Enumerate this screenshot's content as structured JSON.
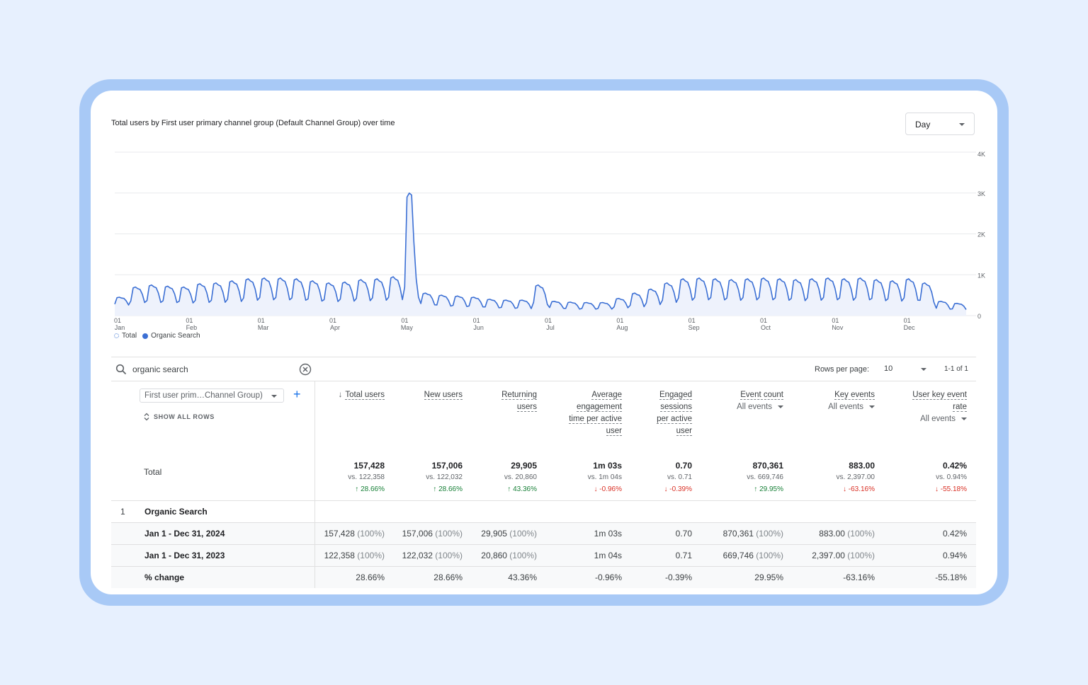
{
  "chart": {
    "title": "Total users by First user primary channel group (Default Channel Group) over time",
    "period": "Day",
    "legend": [
      "Total",
      "Organic Search"
    ],
    "colors": {
      "line": "#3b6fd4",
      "area": "#eef2fc",
      "grid": "#e8eaed"
    }
  },
  "chart_data": {
    "type": "line",
    "title": "Total users by First user primary channel group (Default Channel Group) over time",
    "xlabel": "",
    "ylabel": "",
    "ylim": [
      0,
      4000
    ],
    "y_ticks": [
      "4K",
      "3K",
      "2K",
      "1K",
      "0"
    ],
    "x_ticks": [
      {
        "day": "01",
        "month": "Jan"
      },
      {
        "day": "01",
        "month": "Feb"
      },
      {
        "day": "01",
        "month": "Mar"
      },
      {
        "day": "01",
        "month": "Apr"
      },
      {
        "day": "01",
        "month": "May"
      },
      {
        "day": "01",
        "month": "Jun"
      },
      {
        "day": "01",
        "month": "Jul"
      },
      {
        "day": "01",
        "month": "Aug"
      },
      {
        "day": "01",
        "month": "Sep"
      },
      {
        "day": "01",
        "month": "Oct"
      },
      {
        "day": "01",
        "month": "Nov"
      },
      {
        "day": "01",
        "month": "Dec"
      }
    ],
    "grid": true,
    "series": [
      {
        "name": "Organic Search",
        "x": [
          "Jan 1",
          "Jan 8",
          "Jan 15",
          "Jan 22",
          "Jan 29",
          "Feb 5",
          "Feb 12",
          "Feb 19",
          "Feb 26",
          "Mar 4",
          "Mar 11",
          "Mar 18",
          "Mar 25",
          "Apr 1",
          "Apr 8",
          "Apr 15",
          "Apr 22",
          "Apr 29",
          "May 6",
          "May 13",
          "May 20",
          "May 27",
          "Jun 3",
          "Jun 10",
          "Jun 17",
          "Jun 24",
          "Jul 1",
          "Jul 8",
          "Jul 15",
          "Jul 22",
          "Jul 29",
          "Aug 5",
          "Aug 12",
          "Aug 19",
          "Aug 26",
          "Sep 2",
          "Sep 9",
          "Sep 16",
          "Sep 23",
          "Sep 30",
          "Oct 7",
          "Oct 14",
          "Oct 21",
          "Oct 28",
          "Nov 4",
          "Nov 11",
          "Nov 18",
          "Nov 25",
          "Dec 2",
          "Dec 9",
          "Dec 16",
          "Dec 23",
          "Dec 30"
        ],
        "weekly_peaks": [
          450,
          700,
          750,
          720,
          700,
          780,
          800,
          850,
          900,
          920,
          920,
          900,
          850,
          800,
          820,
          880,
          900,
          950,
          3000,
          550,
          500,
          480,
          450,
          400,
          380,
          380,
          750,
          350,
          330,
          320,
          320,
          420,
          550,
          650,
          800,
          900,
          920,
          900,
          880,
          900,
          920,
          900,
          880,
          900,
          920,
          900,
          920,
          880,
          850,
          900,
          800,
          350,
          300
        ],
        "weekly_troughs": [
          250,
          300,
          300,
          300,
          290,
          300,
          300,
          320,
          350,
          360,
          360,
          350,
          330,
          320,
          330,
          340,
          350,
          360,
          500,
          250,
          220,
          210,
          200,
          180,
          170,
          160,
          250,
          170,
          150,
          150,
          150,
          180,
          200,
          250,
          300,
          350,
          360,
          360,
          350,
          360,
          360,
          350,
          340,
          350,
          360,
          350,
          360,
          340,
          330,
          350,
          300,
          150,
          140
        ]
      }
    ]
  },
  "toolbar": {
    "search_value": "organic search",
    "rows_per_page_label": "Rows per page:",
    "rows_per_page": "10",
    "pagination": "1-1 of 1"
  },
  "table": {
    "dimension_select": "First user prim…Channel Group)",
    "show_all_rows": "SHOW ALL ROWS",
    "headers": [
      {
        "lines": [
          "Total users"
        ],
        "sort": "↓"
      },
      {
        "lines": [
          "New users"
        ]
      },
      {
        "lines": [
          "Returning",
          "users"
        ]
      },
      {
        "lines": [
          "Average",
          "engagement",
          "time per active",
          "user"
        ]
      },
      {
        "lines": [
          "Engaged",
          "sessions",
          "per active",
          "user"
        ]
      },
      {
        "lines": [
          "Event count"
        ],
        "sub": "All events"
      },
      {
        "lines": [
          "Key events"
        ],
        "sub": "All events"
      },
      {
        "lines": [
          "User key event",
          "rate"
        ],
        "sub": "All events"
      }
    ],
    "totals_label": "Total",
    "totals": [
      {
        "value": "157,428",
        "vs": "vs. 122,358",
        "change": "↑ 28.66%",
        "dir": "up"
      },
      {
        "value": "157,006",
        "vs": "vs. 122,032",
        "change": "↑ 28.66%",
        "dir": "up"
      },
      {
        "value": "29,905",
        "vs": "vs. 20,860",
        "change": "↑ 43.36%",
        "dir": "up"
      },
      {
        "value": "1m 03s",
        "vs": "vs. 1m 04s",
        "change": "↓ -0.96%",
        "dir": "down"
      },
      {
        "value": "0.70",
        "vs": "vs. 0.71",
        "change": "↓ -0.39%",
        "dir": "down"
      },
      {
        "value": "870,361",
        "vs": "vs. 669,746",
        "change": "↑ 29.95%",
        "dir": "up"
      },
      {
        "value": "883.00",
        "vs": "vs. 2,397.00",
        "change": "↓ -63.16%",
        "dir": "down"
      },
      {
        "value": "0.42%",
        "vs": "vs. 0.94%",
        "change": "↓ -55.18%",
        "dir": "down"
      }
    ],
    "rows": [
      {
        "index": "1",
        "label": "Organic Search",
        "cells": [],
        "shade": false
      },
      {
        "index": "",
        "label": "Jan 1 - Dec 31, 2024",
        "shade": true,
        "cells": [
          {
            "v": "157,428",
            "p": "(100%)"
          },
          {
            "v": "157,006",
            "p": "(100%)"
          },
          {
            "v": "29,905",
            "p": "(100%)"
          },
          {
            "v": "1m 03s",
            "p": ""
          },
          {
            "v": "0.70",
            "p": ""
          },
          {
            "v": "870,361",
            "p": "(100%)"
          },
          {
            "v": "883.00",
            "p": "(100%)"
          },
          {
            "v": "0.42%",
            "p": ""
          }
        ]
      },
      {
        "index": "",
        "label": "Jan 1 - Dec 31, 2023",
        "shade": true,
        "cells": [
          {
            "v": "122,358",
            "p": "(100%)"
          },
          {
            "v": "122,032",
            "p": "(100%)"
          },
          {
            "v": "20,860",
            "p": "(100%)"
          },
          {
            "v": "1m 04s",
            "p": ""
          },
          {
            "v": "0.71",
            "p": ""
          },
          {
            "v": "669,746",
            "p": "(100%)"
          },
          {
            "v": "2,397.00",
            "p": "(100%)"
          },
          {
            "v": "0.94%",
            "p": ""
          }
        ]
      },
      {
        "index": "",
        "label": "% change",
        "shade": true,
        "cells": [
          {
            "v": "28.66%",
            "p": ""
          },
          {
            "v": "28.66%",
            "p": ""
          },
          {
            "v": "43.36%",
            "p": ""
          },
          {
            "v": "-0.96%",
            "p": ""
          },
          {
            "v": "-0.39%",
            "p": ""
          },
          {
            "v": "29.95%",
            "p": ""
          },
          {
            "v": "-63.16%",
            "p": ""
          },
          {
            "v": "-55.18%",
            "p": ""
          }
        ]
      }
    ]
  }
}
